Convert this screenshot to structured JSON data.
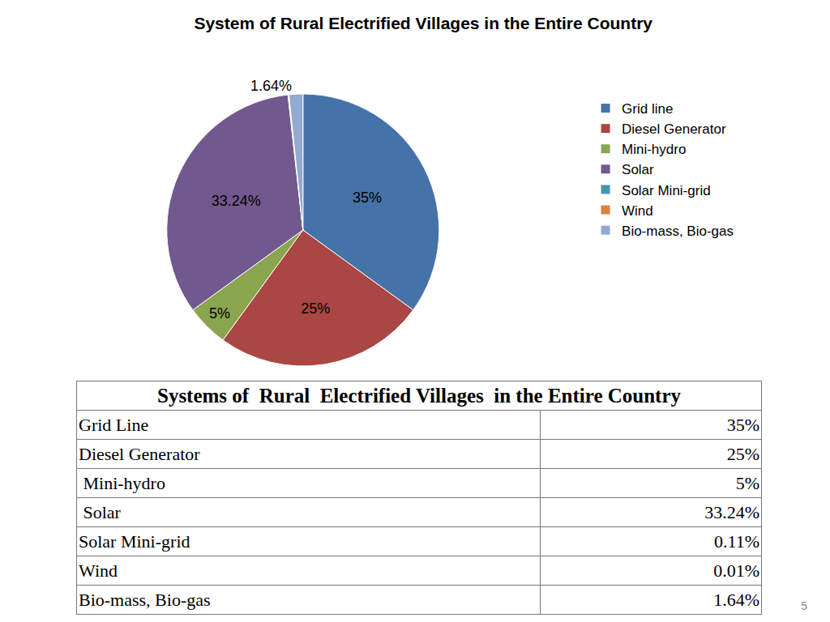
{
  "chart_data": {
    "type": "pie",
    "title": "System of Rural Electrified Villages in the Entire Country",
    "categories": [
      "Grid line",
      "Diesel Generator",
      "Mini-hydro",
      "Solar",
      "Solar Mini-grid",
      "Wind",
      "Bio-mass, Bio-gas"
    ],
    "values": [
      35,
      25,
      5,
      33.24,
      0.11,
      0.01,
      1.64
    ],
    "value_labels": [
      "35%",
      "25%",
      "5%",
      "33.24%",
      null,
      null,
      "1.64%"
    ],
    "colors": [
      "#4572A7",
      "#AA4643",
      "#89A54E",
      "#71588F",
      "#4198AF",
      "#DB843D",
      "#93A9CF"
    ],
    "data_labels": true,
    "legend": "right"
  },
  "table": {
    "title": "Systems of  Rural  Electrified Villages  in the Entire Country",
    "rows": [
      [
        "Grid Line",
        "35%"
      ],
      [
        "Diesel Generator",
        "25%"
      ],
      [
        " Mini-hydro",
        "5%"
      ],
      [
        " Solar",
        "33.24%"
      ],
      [
        "Solar Mini-grid",
        "0.11%"
      ],
      [
        "Wind",
        "0.01%"
      ],
      [
        "Bio-mass, Bio-gas",
        "1.64%"
      ]
    ]
  },
  "page_number": "5"
}
